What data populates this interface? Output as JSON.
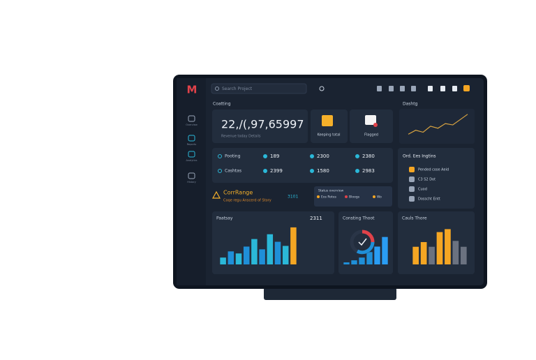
{
  "brand": "M",
  "search": "Search Project",
  "sidebar": [
    "Overview",
    "Reports",
    "Analytics",
    "History"
  ],
  "summary": {
    "label": "Coatting",
    "value": "22,/(,97,65997",
    "caption": "Revenue today   Details",
    "card_a": "Keeping total",
    "card_b": "Flagged"
  },
  "trend": {
    "title": "Dashtg",
    "values": [
      8,
      14,
      11,
      20,
      17,
      24,
      22,
      30,
      38
    ],
    "ylim": [
      0,
      42
    ],
    "color": "#d9a441"
  },
  "stats": [
    [
      "Pooting",
      "189",
      "2300",
      "2380"
    ],
    [
      "Cashtas",
      "2399",
      "1580",
      "2983"
    ]
  ],
  "alert": {
    "title": "CorrRange",
    "text": "Coqe regu Anscerd of Story",
    "badge": "3101"
  },
  "mini_card": {
    "title": "Status overview",
    "items": [
      "Eos Rotes",
      "Bloogs",
      "Wo"
    ]
  },
  "orders": {
    "title": "Ord. Ees Ingtins",
    "items": [
      "Pended cose Aeid",
      "C3 S2 Dot",
      "Cuod",
      "Dosscht Entt"
    ]
  },
  "panels": [
    {
      "title": "Paatsay",
      "value": "2311",
      "ylim": [
        0,
        60
      ],
      "values": [
        10,
        19,
        16,
        26,
        37,
        22,
        44,
        33,
        27,
        54
      ],
      "colors": [
        "#2bb8d8",
        "#1f8fd8",
        "#2bb8d8",
        "#1f8fd8",
        "#2bb8d8",
        "#1f8fd8",
        "#2bb8d8",
        "#1f8fd8",
        "#2bb8d8",
        "#f5a623"
      ]
    },
    {
      "title": "Consting Thoot",
      "ylim": [
        0,
        60
      ],
      "values": [
        3,
        6,
        10,
        18,
        26,
        40
      ],
      "colors": [
        "#1f8fd8",
        "#1f8fd8",
        "#1f8fd8",
        "#1f8fd8",
        "#2a9df4",
        "#2a9df4"
      ]
    },
    {
      "title": "Cauls Thore",
      "ylim": [
        0,
        70
      ],
      "values": [
        30,
        38,
        30,
        55,
        60,
        40,
        30
      ],
      "colors": [
        "#f5a623",
        "#f5a623",
        "#6b7280",
        "#f5a623",
        "#f5a623",
        "#6b7280",
        "#6b7280"
      ]
    }
  ]
}
